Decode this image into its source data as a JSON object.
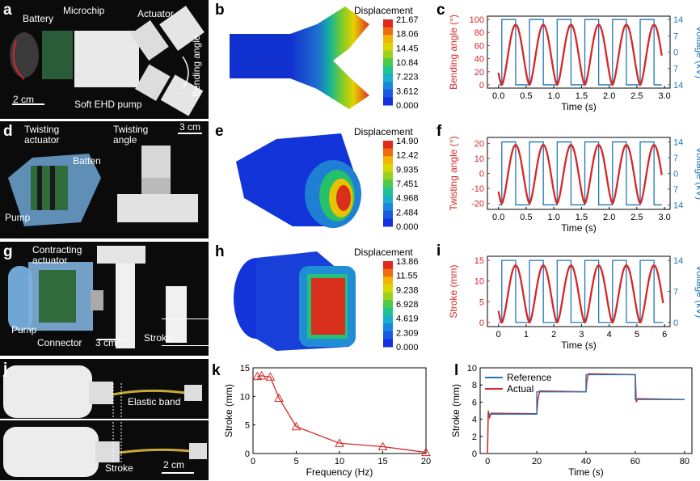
{
  "panels": {
    "a": {
      "label": "a",
      "battery": "Battery",
      "microchip": "Microchip",
      "actuator": "Actuator",
      "bending": "Bending angle",
      "scale": "2 cm",
      "pump": "Soft EHD pump"
    },
    "b": {
      "label": "b",
      "title": "Displacement",
      "ticks": [
        "21.67",
        "18.06",
        "14.45",
        "10.84",
        "7.223",
        "3.612",
        "0.000"
      ]
    },
    "c": {
      "label": "c"
    },
    "d": {
      "label": "d",
      "twisting_actuator": "Twisting\nactuator",
      "batten": "Batten",
      "pump": "Pump",
      "twisting_angle": "Twisting\nangle",
      "scale": "3 cm"
    },
    "e": {
      "label": "e",
      "title": "Displacement",
      "ticks": [
        "14.90",
        "12.42",
        "9.935",
        "7.451",
        "4.968",
        "2.484",
        "0.000"
      ]
    },
    "f": {
      "label": "f"
    },
    "g": {
      "label": "g",
      "contracting": "Contracting\nactuator",
      "pump": "Pump",
      "connector": "Connector",
      "scale": "3 cm",
      "stroke": "Stroke"
    },
    "h": {
      "label": "h",
      "title": "Displacement",
      "ticks": [
        "13.86",
        "11.55",
        "9.238",
        "6.928",
        "4.619",
        "2.309",
        "0.000"
      ]
    },
    "i": {
      "label": "i"
    },
    "j": {
      "label": "j",
      "elastic": "Elastic band",
      "stroke": "Stroke",
      "scale": "2 cm"
    },
    "k": {
      "label": "k"
    },
    "l": {
      "label": "l"
    }
  },
  "colors": {
    "red": "#d62728",
    "blue": "#1f77b4"
  },
  "chart_data": [
    {
      "id": "c",
      "type": "line",
      "xlabel": "Time (s)",
      "ylabel": "Bending angle (°)",
      "y2label": "Voltage (kV)",
      "xlim": [
        -0.2,
        3.1
      ],
      "xticks": [
        "0.0",
        "0.5",
        "1.0",
        "1.5",
        "2.0",
        "2.5",
        "3.0"
      ],
      "xtickvals": [
        0,
        0.5,
        1,
        1.5,
        2,
        2.5,
        3
      ],
      "ylim": [
        -5,
        105
      ],
      "yticks": [
        "0",
        "20",
        "40",
        "60",
        "80",
        "100"
      ],
      "ytickvals": [
        0,
        20,
        40,
        60,
        80,
        100
      ],
      "y2ticks": [
        "14",
        "7",
        "0",
        "7",
        "14"
      ],
      "y2tickvals": [
        100,
        75,
        50,
        25,
        0
      ],
      "period": 0.5,
      "wave": {
        "min": 0,
        "max": 92
      },
      "square": {
        "low": 0,
        "high": 100,
        "start": 0,
        "end": 2.95
      },
      "duty_phase": 0.2
    },
    {
      "id": "f",
      "type": "line",
      "xlabel": "Time (s)",
      "ylabel": "Twisting angle (°)",
      "y2label": "Voltage (kV)",
      "xlim": [
        -0.2,
        3.1
      ],
      "xticks": [
        "0.0",
        "0.5",
        "1.0",
        "1.5",
        "2.0",
        "2.5",
        "3.0"
      ],
      "xtickvals": [
        0,
        0.5,
        1,
        1.5,
        2,
        2.5,
        3
      ],
      "ylim": [
        -24,
        24
      ],
      "yticks": [
        "-20",
        "-10",
        "0",
        "10",
        "20"
      ],
      "ytickvals": [
        -20,
        -10,
        0,
        10,
        20
      ],
      "y2ticks": [
        "14",
        "7",
        "0",
        "7",
        "14"
      ],
      "y2tickvals": [
        21,
        10.5,
        0,
        -10.5,
        -21
      ],
      "period": 0.5,
      "wave": {
        "min": -20,
        "max": 19
      },
      "square": {
        "low": -21,
        "high": 21,
        "start": 0,
        "end": 2.95
      }
    },
    {
      "id": "i",
      "type": "line",
      "xlabel": "Time (s)",
      "ylabel": "Stroke (mm)",
      "y2label": "Voltage (kV)",
      "xlim": [
        -0.4,
        6.2
      ],
      "xticks": [
        "0",
        "1",
        "2",
        "3",
        "4",
        "5",
        "6"
      ],
      "xtickvals": [
        0,
        1,
        2,
        3,
        4,
        5,
        6
      ],
      "ylim": [
        -1,
        16
      ],
      "yticks": [
        "0",
        "5",
        "10",
        "15"
      ],
      "ytickvals": [
        0,
        5,
        10,
        15
      ],
      "y2ticks": [
        "14",
        "7",
        "0"
      ],
      "y2tickvals": [
        15,
        7.5,
        0
      ],
      "period": 1,
      "wave": {
        "min": 0,
        "max": 13.8
      },
      "square": {
        "low": 0,
        "high": 15,
        "start": 0,
        "end": 5.95
      }
    },
    {
      "id": "k",
      "type": "line",
      "xlabel": "Frequency (Hz)",
      "ylabel": "Stroke (mm)",
      "xlim": [
        0,
        20
      ],
      "xticks": [
        "0",
        "5",
        "10",
        "15",
        "20"
      ],
      "xtickvals": [
        0,
        5,
        10,
        15,
        20
      ],
      "ylim": [
        0,
        15
      ],
      "yticks": [
        "0",
        "5",
        "10",
        "15"
      ],
      "ytickvals": [
        0,
        5,
        10,
        15
      ],
      "x": [
        0.5,
        1,
        2,
        3,
        5,
        10,
        15,
        20
      ],
      "y": [
        13.5,
        13.6,
        13.4,
        9.7,
        4.7,
        1.8,
        1.2,
        0.2
      ]
    },
    {
      "id": "l",
      "type": "line",
      "xlabel": "Time (s)",
      "ylabel": "Stroke (mm)",
      "xlim": [
        -3,
        83
      ],
      "xticks": [
        "0",
        "20",
        "40",
        "60",
        "80"
      ],
      "xtickvals": [
        0,
        20,
        40,
        60,
        80
      ],
      "ylim": [
        0,
        10
      ],
      "yticks": [
        "0",
        "2",
        "4",
        "6",
        "8",
        "10"
      ],
      "ytickvals": [
        0,
        2,
        4,
        6,
        8,
        10
      ],
      "legend": [
        "Reference",
        "Actual"
      ],
      "reference": {
        "x": [
          0,
          20,
          20,
          40,
          40,
          60,
          60,
          80
        ],
        "y": [
          4.6,
          4.6,
          7.2,
          7.2,
          9.2,
          9.2,
          6.3,
          6.3
        ]
      }
    }
  ]
}
